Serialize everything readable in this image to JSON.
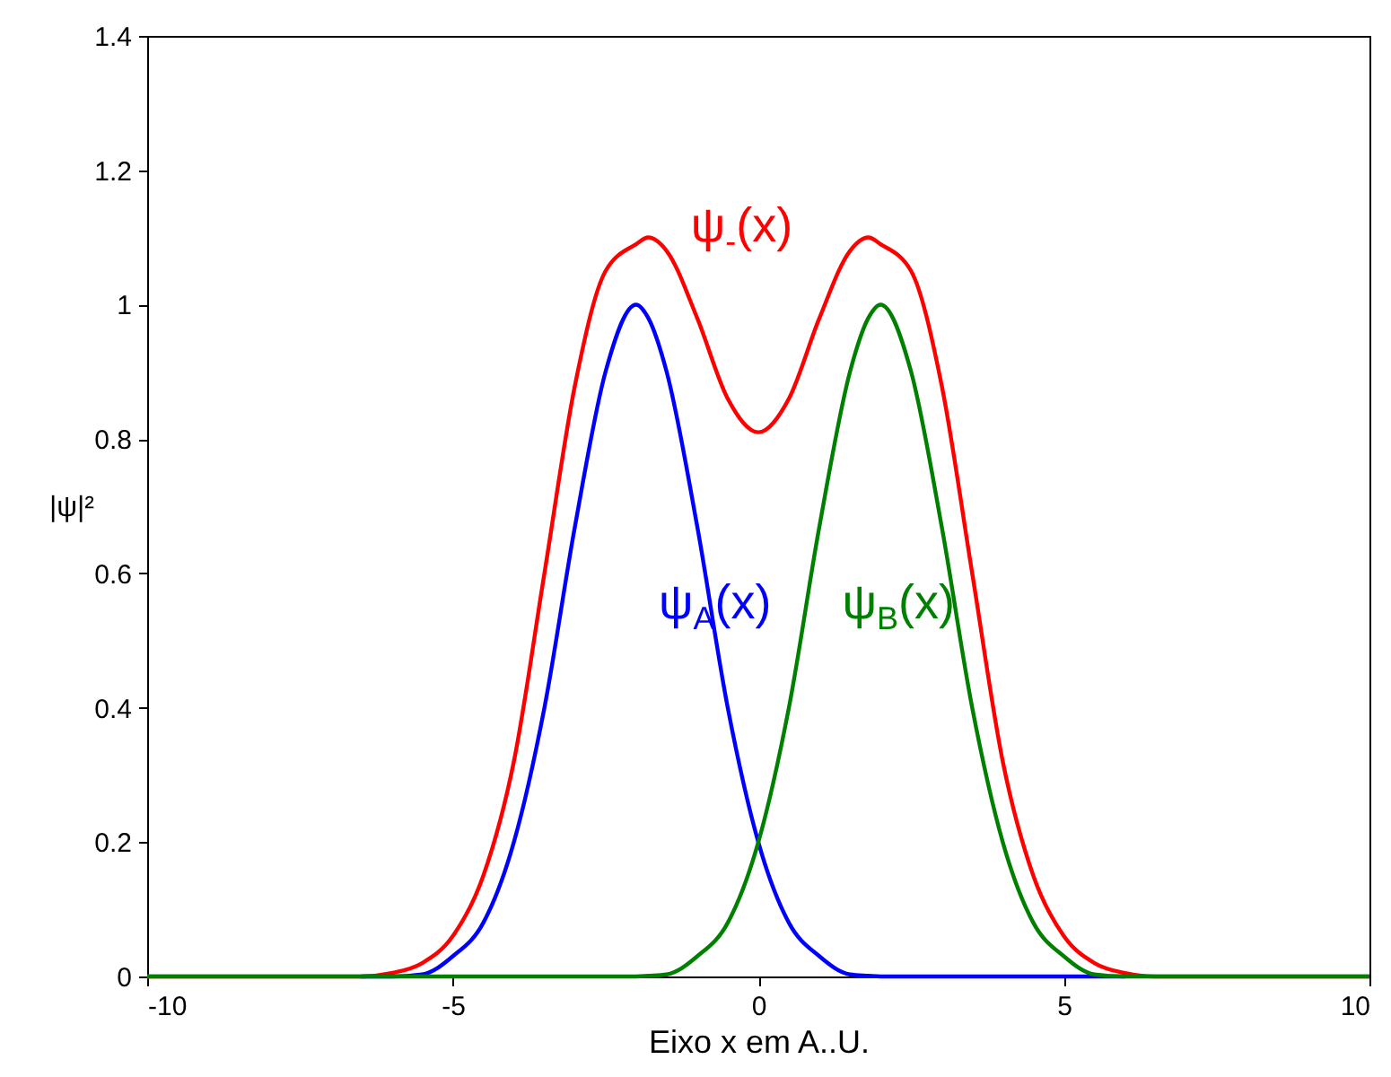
{
  "chart_data": {
    "type": "line",
    "xlabel": "Eixo x em A..U.",
    "ylabel": "|ψ|²",
    "x": [
      -10,
      -8,
      -6.5,
      -6,
      -5.5,
      -5,
      -4.5,
      -4,
      -3.5,
      -3,
      -2.5,
      -2,
      -1.8,
      -1.5,
      -1,
      -0.5,
      0,
      0.5,
      1,
      1.5,
      1.8,
      2,
      2.5,
      3,
      3.5,
      4,
      4.5,
      5,
      5.5,
      6,
      6.5,
      8,
      10
    ],
    "series": [
      {
        "name": "ψ$_{-}$(x)",
        "color": "#ff0000",
        "values": [
          0,
          0,
          0,
          0.005,
          0.02,
          0.06,
          0.15,
          0.32,
          0.6,
          0.88,
          1.05,
          1.09,
          1.1,
          1.08,
          0.98,
          0.86,
          0.81,
          0.86,
          0.98,
          1.08,
          1.1,
          1.09,
          1.05,
          0.88,
          0.6,
          0.32,
          0.15,
          0.06,
          0.02,
          0.005,
          0,
          0,
          0
        ]
      },
      {
        "name": "ψ$_{A}$(x)",
        "color": "#0000ff",
        "values": [
          null,
          null,
          0,
          0,
          0.003,
          0.03,
          0.08,
          0.2,
          0.4,
          0.67,
          0.9,
          1.0,
          0.98,
          0.9,
          0.67,
          0.4,
          0.2,
          0.08,
          0.03,
          0.003,
          0.001,
          0,
          0,
          0,
          0,
          0,
          0,
          0,
          0,
          0,
          null,
          null,
          null
        ]
      },
      {
        "name": "ψ$_{B}$(x)",
        "color": "#008000",
        "values": [
          0,
          0,
          0,
          0,
          0,
          0,
          0,
          0,
          0,
          0,
          0,
          0,
          0.001,
          0.003,
          0.03,
          0.08,
          0.2,
          0.4,
          0.67,
          0.9,
          0.98,
          1.0,
          0.9,
          0.67,
          0.4,
          0.2,
          0.08,
          0.03,
          0.003,
          0,
          0,
          0,
          0
        ]
      }
    ],
    "xlim": [
      -10,
      10
    ],
    "xticks": [
      -10,
      -5,
      0,
      5,
      10
    ],
    "ylim": [
      0,
      1.4
    ],
    "yticks": [
      0,
      0.2,
      0.4,
      0.6,
      0.8,
      1,
      1.2,
      1.4
    ],
    "legend": false
  }
}
